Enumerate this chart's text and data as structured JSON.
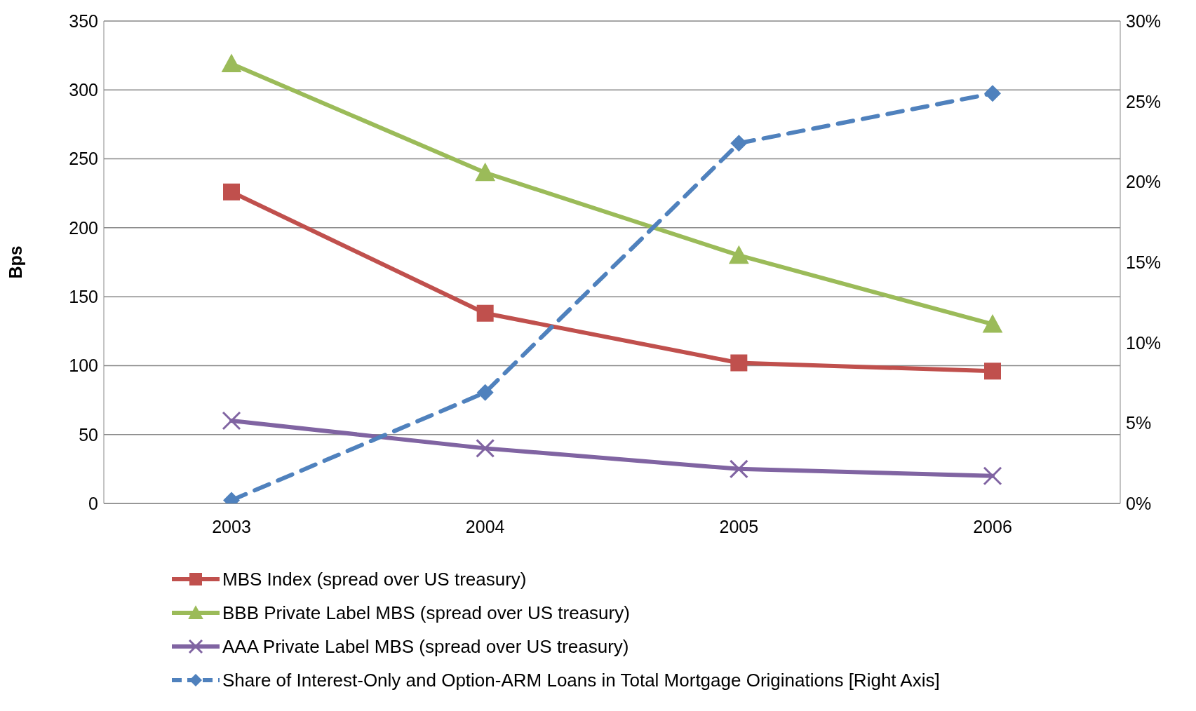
{
  "chart_data": {
    "type": "line",
    "ylabel": "Bps",
    "categories": [
      "2003",
      "2004",
      "2005",
      "2006"
    ],
    "ylim": [
      0,
      350
    ],
    "yticks": [
      0,
      50,
      100,
      150,
      200,
      250,
      300,
      350
    ],
    "y2lim": [
      0,
      30
    ],
    "y2ticks": [
      {
        "value": 0,
        "label": "0%"
      },
      {
        "value": 5,
        "label": "5%"
      },
      {
        "value": 10,
        "label": "10%"
      },
      {
        "value": 15,
        "label": "15%"
      },
      {
        "value": 20,
        "label": "20%"
      },
      {
        "value": 25,
        "label": "25%"
      },
      {
        "value": 30,
        "label": "30%"
      }
    ],
    "grid": "y",
    "legend": "bottom",
    "series": [
      {
        "name": "MBS Index (spread over US treasury)",
        "color": "#c0504d",
        "marker": "square",
        "line_style": "solid",
        "values": [
          226,
          138,
          102,
          96
        ]
      },
      {
        "name": "BBB Private Label MBS (spread over US treasury)",
        "color": "#9bbb59",
        "marker": "triangle",
        "line_style": "solid",
        "values": [
          319,
          240,
          180,
          130
        ]
      },
      {
        "name": "AAA Private Label MBS (spread over US treasury)",
        "color": "#8064a2",
        "marker": "cross",
        "line_style": "solid",
        "values": [
          60,
          40,
          25,
          20
        ]
      },
      {
        "name": "Share of Interest-Only and Option-ARM Loans in Total Mortgage  Originations [Right Axis]",
        "color": "#4f81bd",
        "marker": "diamond",
        "line_style": "dashed",
        "axis": "y2",
        "values": [
          0.2,
          6.9,
          22.4,
          25.5
        ]
      }
    ]
  }
}
